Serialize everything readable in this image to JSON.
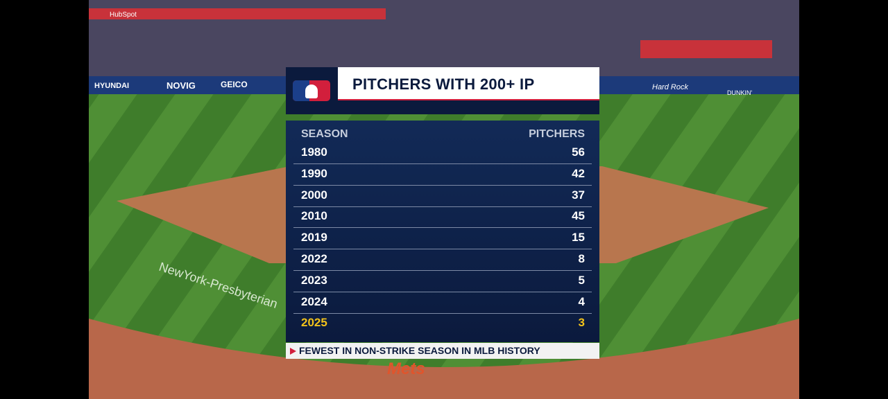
{
  "graphic": {
    "title": "PITCHERS WITH 200+ IP",
    "table": {
      "header": [
        "SEASON",
        "PITCHERS"
      ],
      "rows": [
        [
          "1980",
          56
        ],
        [
          "1990",
          42
        ],
        [
          "2000",
          37
        ],
        [
          "2010",
          45
        ],
        [
          "2019",
          15
        ],
        [
          "2022",
          8
        ],
        [
          "2023",
          5
        ],
        [
          "2024",
          4
        ],
        [
          "2025",
          3
        ]
      ]
    },
    "footer": "FEWEST IN NON-STRIKE SEASON IN MLB HISTORY"
  },
  "background": {
    "signs": [
      "HYUNDAI",
      "NOVIG",
      "GEICO",
      "HubSpot",
      "Hard Rock",
      "DUNKIN'",
      "NewYork-Presbyterian",
      "Mets"
    ]
  }
}
